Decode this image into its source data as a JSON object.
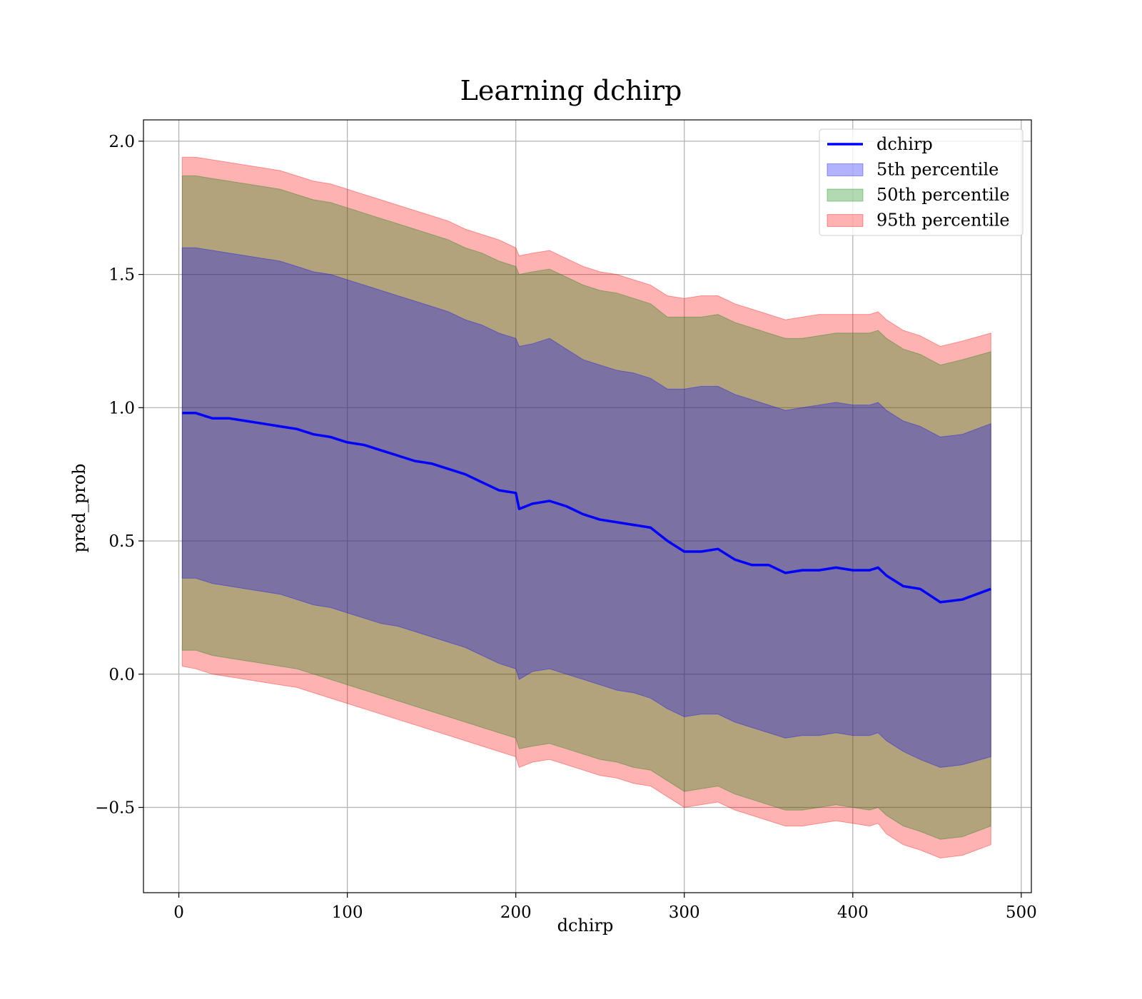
{
  "chart_data": {
    "type": "line",
    "title": "Learning dchirp",
    "xlabel": "dchirp",
    "ylabel": "pred_prob",
    "xlim": [
      -21,
      506
    ],
    "ylim": [
      -0.82,
      2.08
    ],
    "xticks": [
      0,
      100,
      200,
      300,
      400,
      500
    ],
    "xtick_labels": [
      "0",
      "100",
      "200",
      "300",
      "400",
      "500"
    ],
    "yticks": [
      -0.5,
      0.0,
      0.5,
      1.0,
      1.5,
      2.0
    ],
    "ytick_labels": [
      "−0.5",
      "0.0",
      "0.5",
      "1.0",
      "1.5",
      "2.0"
    ],
    "grid": true,
    "legend_position": "upper right",
    "legend": [
      {
        "label": "dchirp",
        "kind": "line",
        "color": "#0000ff"
      },
      {
        "label": "5th percentile",
        "kind": "patch",
        "color": "#0000ff"
      },
      {
        "label": "50th percentile",
        "kind": "patch",
        "color": "#008000"
      },
      {
        "label": "95th percentile",
        "kind": "patch",
        "color": "#ff0000"
      }
    ],
    "x": [
      2,
      10,
      20,
      30,
      40,
      50,
      60,
      70,
      80,
      90,
      100,
      110,
      120,
      130,
      140,
      150,
      160,
      170,
      180,
      190,
      200,
      202,
      210,
      220,
      230,
      240,
      250,
      260,
      270,
      280,
      290,
      300,
      310,
      320,
      330,
      340,
      350,
      360,
      370,
      380,
      390,
      400,
      410,
      415,
      420,
      430,
      440,
      452,
      465,
      482
    ],
    "series": [
      {
        "name": "dchirp",
        "kind": "line",
        "color": "#0000ff",
        "values": [
          0.98,
          0.98,
          0.96,
          0.96,
          0.95,
          0.94,
          0.93,
          0.92,
          0.9,
          0.89,
          0.87,
          0.86,
          0.84,
          0.82,
          0.8,
          0.79,
          0.77,
          0.75,
          0.72,
          0.69,
          0.68,
          0.62,
          0.64,
          0.65,
          0.63,
          0.6,
          0.58,
          0.57,
          0.56,
          0.55,
          0.5,
          0.46,
          0.46,
          0.47,
          0.43,
          0.41,
          0.41,
          0.38,
          0.39,
          0.39,
          0.4,
          0.39,
          0.39,
          0.4,
          0.37,
          0.33,
          0.32,
          0.27,
          0.28,
          0.32
        ]
      },
      {
        "name": "5th percentile",
        "kind": "band",
        "color": "#0000ff",
        "lower": [
          0.36,
          0.36,
          0.34,
          0.33,
          0.32,
          0.31,
          0.3,
          0.28,
          0.26,
          0.25,
          0.23,
          0.21,
          0.19,
          0.18,
          0.16,
          0.14,
          0.12,
          0.1,
          0.07,
          0.04,
          0.02,
          -0.02,
          0.01,
          0.02,
          0.0,
          -0.02,
          -0.04,
          -0.06,
          -0.07,
          -0.09,
          -0.13,
          -0.16,
          -0.15,
          -0.15,
          -0.18,
          -0.2,
          -0.22,
          -0.24,
          -0.23,
          -0.23,
          -0.22,
          -0.23,
          -0.23,
          -0.22,
          -0.25,
          -0.29,
          -0.32,
          -0.35,
          -0.34,
          -0.31
        ],
        "upper": [
          1.6,
          1.6,
          1.59,
          1.58,
          1.57,
          1.56,
          1.55,
          1.53,
          1.51,
          1.5,
          1.48,
          1.46,
          1.44,
          1.42,
          1.4,
          1.38,
          1.36,
          1.33,
          1.31,
          1.28,
          1.26,
          1.23,
          1.24,
          1.26,
          1.22,
          1.18,
          1.16,
          1.14,
          1.13,
          1.11,
          1.07,
          1.07,
          1.08,
          1.08,
          1.05,
          1.03,
          1.01,
          0.99,
          1.0,
          1.01,
          1.02,
          1.01,
          1.01,
          1.02,
          0.99,
          0.95,
          0.93,
          0.89,
          0.9,
          0.94
        ]
      },
      {
        "name": "50th percentile",
        "kind": "band",
        "color": "#008000",
        "lower": [
          0.09,
          0.09,
          0.07,
          0.06,
          0.05,
          0.04,
          0.03,
          0.02,
          0.0,
          -0.02,
          -0.04,
          -0.06,
          -0.08,
          -0.1,
          -0.12,
          -0.14,
          -0.16,
          -0.18,
          -0.2,
          -0.22,
          -0.24,
          -0.28,
          -0.27,
          -0.26,
          -0.28,
          -0.3,
          -0.32,
          -0.33,
          -0.35,
          -0.36,
          -0.4,
          -0.44,
          -0.43,
          -0.42,
          -0.45,
          -0.47,
          -0.49,
          -0.51,
          -0.51,
          -0.5,
          -0.49,
          -0.5,
          -0.51,
          -0.5,
          -0.53,
          -0.57,
          -0.59,
          -0.62,
          -0.61,
          -0.57
        ],
        "upper": [
          1.87,
          1.87,
          1.86,
          1.85,
          1.84,
          1.83,
          1.82,
          1.8,
          1.78,
          1.77,
          1.75,
          1.73,
          1.71,
          1.69,
          1.67,
          1.65,
          1.63,
          1.6,
          1.58,
          1.55,
          1.53,
          1.5,
          1.51,
          1.52,
          1.49,
          1.46,
          1.44,
          1.43,
          1.41,
          1.39,
          1.34,
          1.34,
          1.34,
          1.35,
          1.32,
          1.3,
          1.28,
          1.26,
          1.26,
          1.27,
          1.28,
          1.28,
          1.28,
          1.29,
          1.26,
          1.22,
          1.2,
          1.16,
          1.18,
          1.21
        ]
      },
      {
        "name": "95th percentile",
        "kind": "band",
        "color": "#ff0000",
        "lower": [
          0.03,
          0.02,
          0.0,
          -0.01,
          -0.02,
          -0.03,
          -0.04,
          -0.05,
          -0.07,
          -0.09,
          -0.11,
          -0.13,
          -0.15,
          -0.17,
          -0.19,
          -0.21,
          -0.23,
          -0.25,
          -0.27,
          -0.29,
          -0.31,
          -0.35,
          -0.33,
          -0.32,
          -0.34,
          -0.36,
          -0.38,
          -0.39,
          -0.41,
          -0.42,
          -0.46,
          -0.5,
          -0.49,
          -0.48,
          -0.51,
          -0.53,
          -0.55,
          -0.57,
          -0.57,
          -0.56,
          -0.55,
          -0.56,
          -0.57,
          -0.56,
          -0.6,
          -0.64,
          -0.66,
          -0.69,
          -0.68,
          -0.64
        ],
        "upper": [
          1.94,
          1.94,
          1.93,
          1.92,
          1.91,
          1.9,
          1.89,
          1.87,
          1.85,
          1.84,
          1.82,
          1.8,
          1.78,
          1.76,
          1.74,
          1.72,
          1.7,
          1.67,
          1.65,
          1.63,
          1.6,
          1.57,
          1.58,
          1.59,
          1.56,
          1.53,
          1.51,
          1.5,
          1.48,
          1.46,
          1.42,
          1.41,
          1.42,
          1.42,
          1.39,
          1.37,
          1.35,
          1.33,
          1.34,
          1.35,
          1.35,
          1.35,
          1.35,
          1.36,
          1.33,
          1.29,
          1.27,
          1.23,
          1.25,
          1.28
        ]
      }
    ]
  }
}
